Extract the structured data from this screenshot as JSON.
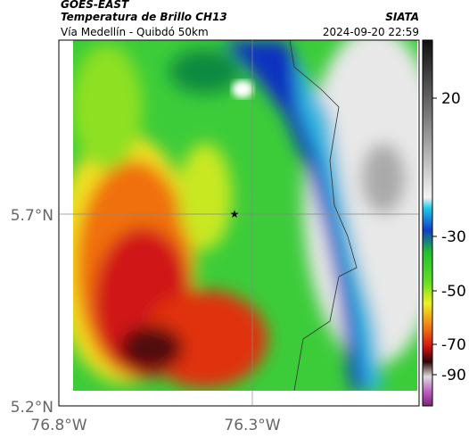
{
  "header": {
    "source": "GOES-EAST",
    "title": "Temperatura de Brillo CH13",
    "subtitle": "Vía Medellín - Quibdó 50km",
    "agency": "SIATA",
    "timestamp": "2024-09-20 22:59"
  },
  "axes": {
    "y_labels": [
      "5.7°N",
      "5.2°N"
    ],
    "x_labels": [
      "76.8°W",
      "76.3°W"
    ]
  },
  "colorbar": {
    "ticks": [
      20,
      -30,
      -50,
      -70,
      -90
    ]
  }
}
